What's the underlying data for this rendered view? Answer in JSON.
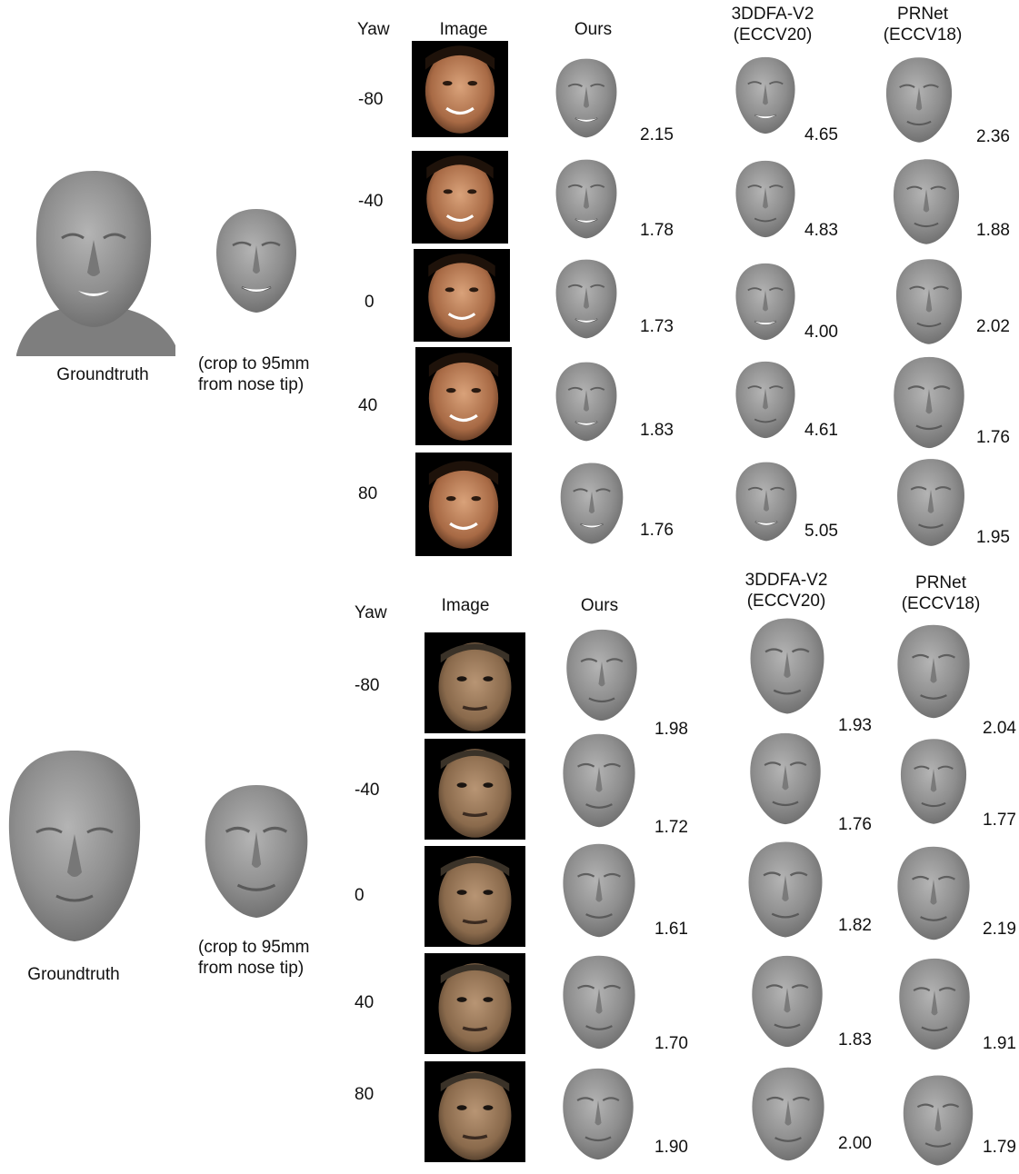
{
  "top": {
    "header": {
      "yaw": "Yaw",
      "image": "Image",
      "ours": "Ours",
      "ddfa": "3DDFA-V2\n(ECCV20)",
      "prnet": "PRNet\n(ECCV18)"
    },
    "groundtruth_label": "Groundtruth",
    "crop_label": "(crop to 95mm\nfrom nose tip)",
    "rows": [
      {
        "yaw": "-80",
        "ours": "2.15",
        "ddfa": "4.65",
        "prnet": "2.36"
      },
      {
        "yaw": "-40",
        "ours": "1.78",
        "ddfa": "4.83",
        "prnet": "1.88"
      },
      {
        "yaw": "0",
        "ours": "1.73",
        "ddfa": "4.00",
        "prnet": "2.02"
      },
      {
        "yaw": "40",
        "ours": "1.83",
        "ddfa": "4.61",
        "prnet": "1.76"
      },
      {
        "yaw": "80",
        "ours": "1.76",
        "ddfa": "5.05",
        "prnet": "1.95"
      }
    ]
  },
  "bottom": {
    "header": {
      "yaw": "Yaw",
      "image": "Image",
      "ours": "Ours",
      "ddfa": "3DDFA-V2\n(ECCV20)",
      "prnet": "PRNet\n(ECCV18)"
    },
    "groundtruth_label": "Groundtruth",
    "crop_label": "(crop to 95mm\nfrom nose tip)",
    "rows": [
      {
        "yaw": "-80",
        "ours": "1.98",
        "ddfa": "1.93",
        "prnet": "2.04"
      },
      {
        "yaw": "-40",
        "ours": "1.72",
        "ddfa": "1.76",
        "prnet": "1.77"
      },
      {
        "yaw": "0",
        "ours": "1.61",
        "ddfa": "1.82",
        "prnet": "2.19"
      },
      {
        "yaw": "40",
        "ours": "1.70",
        "ddfa": "1.83",
        "prnet": "1.91"
      },
      {
        "yaw": "80",
        "ours": "1.90",
        "ddfa": "2.00",
        "prnet": "1.79"
      }
    ]
  }
}
